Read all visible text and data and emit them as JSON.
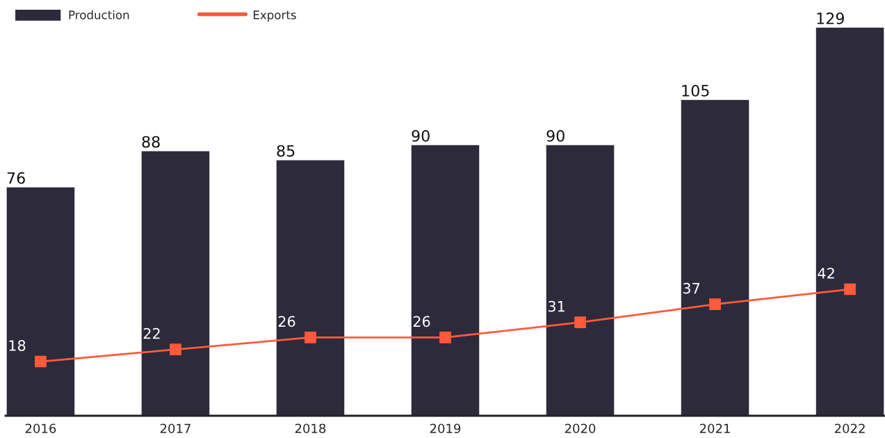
{
  "chart_data": {
    "type": "bar",
    "categories": [
      "2016",
      "2017",
      "2018",
      "2019",
      "2020",
      "2021",
      "2022"
    ],
    "series": [
      {
        "name": "Production",
        "color": "#2d2a3b",
        "values": [
          76,
          88,
          85,
          90,
          90,
          105,
          129
        ]
      },
      {
        "name": "Exports",
        "type": "line",
        "color": "#ff5a3c",
        "marker": "square",
        "values": [
          18,
          22,
          26,
          26,
          31,
          37,
          42
        ]
      }
    ],
    "data_labels": true,
    "legend": "top left",
    "grid": false,
    "tick_labels": "x"
  }
}
